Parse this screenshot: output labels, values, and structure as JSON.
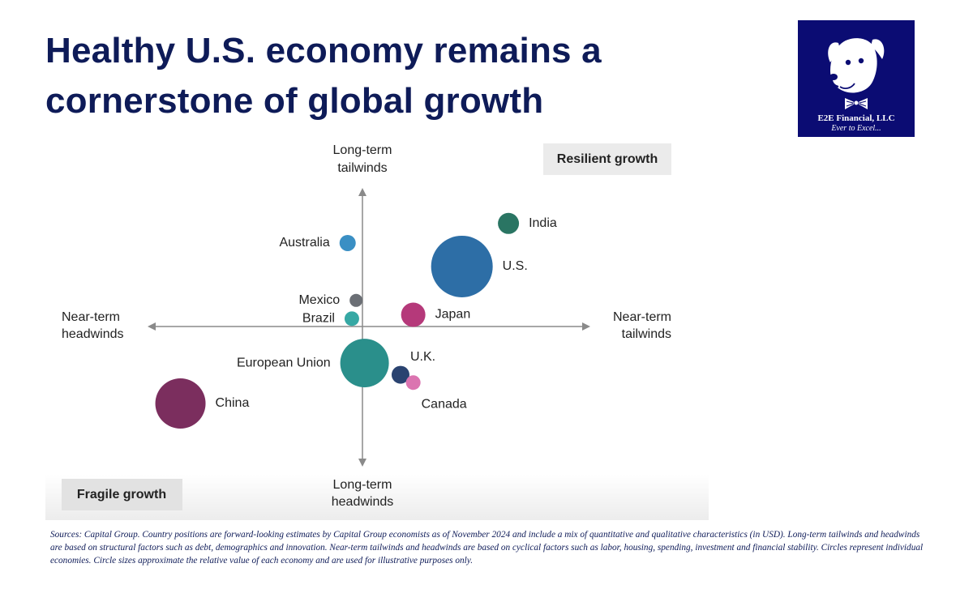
{
  "title": "Healthy U.S. economy remains a cornerstone of global growth",
  "logo": {
    "name": "E2E Financial, LLC",
    "tagline": "Ever to Excel..."
  },
  "chart_data": {
    "type": "scatter",
    "bubble": true,
    "x_axis": {
      "negative_label": [
        "Near-term",
        "headwinds"
      ],
      "positive_label": [
        "Near-term",
        "tailwinds"
      ]
    },
    "y_axis": {
      "positive_label": [
        "Long-term",
        "tailwinds"
      ],
      "negative_label": [
        "Long-term",
        "headwinds"
      ]
    },
    "quadrant_labels": {
      "top_right": "Resilient growth",
      "bottom_left": "Fragile growth"
    },
    "xlim": [
      -10,
      10
    ],
    "ylim": [
      -10,
      10
    ],
    "points": [
      {
        "name": "India",
        "x": 6.9,
        "y": 7.9,
        "size": 13,
        "color": "#2a7563"
      },
      {
        "name": "U.S.",
        "x": 4.7,
        "y": 4.6,
        "size": 38,
        "color": "#2d6ea6"
      },
      {
        "name": "Australia",
        "x": -0.7,
        "y": 6.4,
        "size": 10,
        "color": "#3a8fc4"
      },
      {
        "name": "Mexico",
        "x": -0.3,
        "y": 2.0,
        "size": 8,
        "color": "#6b6f75"
      },
      {
        "name": "Brazil",
        "x": -0.5,
        "y": 0.6,
        "size": 9,
        "color": "#36a8a4"
      },
      {
        "name": "Japan",
        "x": 2.4,
        "y": 0.9,
        "size": 15,
        "color": "#b5397a"
      },
      {
        "name": "European Union",
        "x": 0.1,
        "y": -2.8,
        "size": 30,
        "color": "#2a8f8b"
      },
      {
        "name": "U.K.",
        "x": 1.8,
        "y": -3.7,
        "size": 11,
        "color": "#2a4370"
      },
      {
        "name": "Canada",
        "x": 2.4,
        "y": -4.3,
        "size": 9,
        "color": "#db74b0"
      },
      {
        "name": "China",
        "x": -8.6,
        "y": -5.9,
        "size": 31,
        "color": "#7b2e5e"
      }
    ]
  },
  "sources": "Sources: Capital Group. Country positions are forward-looking estimates by Capital Group economists as of November 2024 and include a mix of quantitative and qualitative characteristics (in USD). Long-term tailwinds and headwinds are based on structural factors such as debt, demographics and innovation. Near-term tailwinds and headwinds are based on cyclical factors such as labor, housing, spending, investment and financial stability. Circles represent individual economies. Circle sizes approximate the relative value of each economy and are used for illustrative purposes only."
}
